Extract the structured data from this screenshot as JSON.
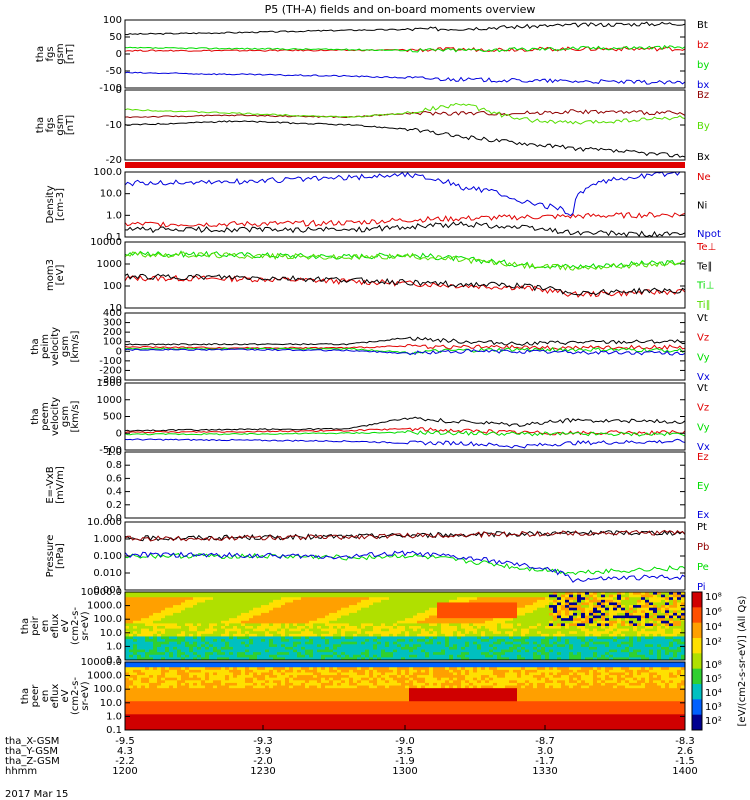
{
  "title": "P5 (TH-A) fields and on-board moments overview",
  "date_label": "2017 Mar 15",
  "colors": {
    "black": "#000000",
    "red": "#e00000",
    "green": "#00dd00",
    "blue": "#0000dd",
    "darkred": "#900000",
    "lime": "#55dd00"
  },
  "chart_data": [
    {
      "type": "line",
      "id": "fgs_gsm",
      "ylabel": [
        "tha",
        "fgs",
        "gsm",
        "[nT]"
      ],
      "ylim": [
        -100,
        100
      ],
      "yticks": [
        "100",
        "50",
        "0",
        "-50",
        "-100"
      ],
      "legend": [
        {
          "name": "Bt",
          "color": "black"
        },
        {
          "name": "bz",
          "color": "red"
        },
        {
          "name": "by",
          "color": "green"
        },
        {
          "name": "bx",
          "color": "blue"
        }
      ],
      "x": [
        0,
        0.2,
        0.4,
        0.5,
        0.6,
        0.7,
        0.8,
        1.0
      ],
      "series": [
        {
          "name": "Bt",
          "values": [
            58,
            63,
            70,
            72,
            75,
            80,
            85,
            90
          ]
        },
        {
          "name": "bz",
          "values": [
            10,
            10,
            11,
            12,
            13,
            14,
            15,
            15
          ]
        },
        {
          "name": "by",
          "values": [
            18,
            16,
            13,
            11,
            12,
            13,
            17,
            20
          ]
        },
        {
          "name": "bx",
          "values": [
            -55,
            -60,
            -65,
            -70,
            -75,
            -78,
            -80,
            -85
          ]
        }
      ]
    },
    {
      "type": "line",
      "id": "fgs_gse",
      "ylabel": [
        "tha",
        "fgs",
        "gsm",
        "[nT]"
      ],
      "ylim": [
        -24,
        12
      ],
      "yticks": [
        "0",
        "-10",
        "-20"
      ],
      "legend": [
        {
          "name": "Bz",
          "color": "darkred"
        },
        {
          "name": "By",
          "color": "lime"
        },
        {
          "name": "Bx",
          "color": "black"
        }
      ],
      "x": [
        0,
        0.2,
        0.4,
        0.5,
        0.6,
        0.7,
        0.8,
        1.0
      ],
      "series": [
        {
          "name": "Bz",
          "values": [
            -2,
            -1,
            -2,
            0,
            0,
            0,
            1,
            0
          ]
        },
        {
          "name": "By",
          "values": [
            2,
            0,
            -2,
            0,
            5,
            -3,
            -5,
            -2
          ]
        },
        {
          "name": "Bx",
          "values": [
            -6,
            -4,
            -6,
            -8,
            -12,
            -15,
            -18,
            -22
          ]
        }
      ]
    },
    {
      "type": "line",
      "id": "density",
      "ylabel": [
        "Density",
        "[cm-3]"
      ],
      "log": true,
      "ylim": [
        0.06,
        200
      ],
      "yticks": [
        "100.0",
        "10.0",
        "1.0",
        "0.1"
      ],
      "legend": [
        {
          "name": "Ne",
          "color": "red"
        },
        {
          "name": "Ni",
          "color": "black"
        },
        {
          "name": "Npot",
          "color": "blue"
        }
      ],
      "x": [
        0,
        0.2,
        0.4,
        0.5,
        0.6,
        0.7,
        0.8,
        1.0
      ],
      "series": [
        {
          "name": "Ne",
          "values": [
            0.3,
            0.3,
            0.35,
            0.5,
            0.6,
            0.7,
            0.8,
            1.0
          ]
        },
        {
          "name": "Ni",
          "values": [
            0.15,
            0.15,
            0.15,
            0.2,
            0.3,
            0.2,
            0.1,
            0.08
          ]
        },
        {
          "name": "Npot",
          "values": [
            50,
            60,
            100,
            150,
            30,
            5,
            1,
            200
          ]
        }
      ]
    },
    {
      "type": "line",
      "id": "temperature",
      "ylabel": [
        "mom3",
        "[eV]"
      ],
      "log": true,
      "ylim": [
        4,
        12000
      ],
      "yticks": [
        "10000",
        "1000",
        "100",
        "10"
      ],
      "legend": [
        {
          "name": "Te⊥",
          "color": "red"
        },
        {
          "name": "Te∥",
          "color": "black"
        },
        {
          "name": "Ti⊥",
          "color": "green"
        },
        {
          "name": "Ti∥",
          "color": "lime"
        }
      ],
      "x": [
        0,
        0.2,
        0.4,
        0.5,
        0.6,
        0.7,
        0.8,
        1.0
      ],
      "series": [
        {
          "name": "Te⊥",
          "values": [
            150,
            140,
            100,
            80,
            60,
            50,
            20,
            30
          ]
        },
        {
          "name": "Te∥",
          "values": [
            180,
            160,
            120,
            90,
            70,
            60,
            25,
            35
          ]
        },
        {
          "name": "Ti⊥",
          "values": [
            3000,
            2500,
            2000,
            2500,
            1500,
            800,
            600,
            1000
          ]
        },
        {
          "name": "Ti∥",
          "values": [
            2800,
            2300,
            1800,
            2200,
            1400,
            700,
            500,
            900
          ]
        }
      ]
    },
    {
      "type": "line",
      "id": "peim_velocity",
      "ylabel": [
        "tha",
        "peim",
        "velocity",
        "gsm",
        "[km/s]"
      ],
      "ylim": [
        -350,
        400
      ],
      "yticks": [
        "400",
        "300",
        "200",
        "100",
        "0",
        "-100",
        "-200",
        "-300"
      ],
      "legend": [
        {
          "name": "Vt",
          "color": "black"
        },
        {
          "name": "Vz",
          "color": "red"
        },
        {
          "name": "Vy",
          "color": "green"
        },
        {
          "name": "Vx",
          "color": "blue"
        }
      ],
      "x": [
        0,
        0.2,
        0.4,
        0.5,
        0.6,
        0.7,
        0.8,
        1.0
      ],
      "series": [
        {
          "name": "Vt",
          "values": [
            50,
            50,
            50,
            120,
            80,
            60,
            70,
            80
          ]
        },
        {
          "name": "Vz",
          "values": [
            20,
            10,
            10,
            30,
            20,
            15,
            10,
            20
          ]
        },
        {
          "name": "Vy",
          "values": [
            0,
            0,
            0,
            -40,
            -20,
            -10,
            -10,
            -20
          ]
        },
        {
          "name": "Vx",
          "values": [
            -10,
            -10,
            -20,
            -50,
            -30,
            -30,
            -40,
            -50
          ]
        }
      ]
    },
    {
      "type": "line",
      "id": "peem_velocity",
      "ylabel": [
        "tha",
        "peem",
        "velocity",
        "gsm",
        "[km/s]"
      ],
      "ylim": [
        -400,
        1500
      ],
      "yticks": [
        "1500",
        "1000",
        "500",
        "0",
        "-500"
      ],
      "legend": [
        {
          "name": "Vt",
          "color": "black"
        },
        {
          "name": "Vz",
          "color": "red"
        },
        {
          "name": "Vy",
          "color": "green"
        },
        {
          "name": "Vx",
          "color": "blue"
        }
      ],
      "x": [
        0,
        0.2,
        0.4,
        0.5,
        0.6,
        0.7,
        0.8,
        1.0
      ],
      "series": [
        {
          "name": "Vt",
          "values": [
            150,
            180,
            200,
            500,
            400,
            300,
            450,
            400
          ]
        },
        {
          "name": "Vz",
          "values": [
            100,
            120,
            150,
            200,
            150,
            100,
            80,
            100
          ]
        },
        {
          "name": "Vy",
          "values": [
            50,
            50,
            80,
            100,
            80,
            60,
            50,
            50
          ]
        },
        {
          "name": "Vx",
          "values": [
            -100,
            -120,
            -150,
            -200,
            -200,
            -300,
            -200,
            -150
          ]
        }
      ]
    },
    {
      "type": "line",
      "id": "exb",
      "ylabel": [
        "E=-VxB",
        "[mV/m]"
      ],
      "ylim": [
        0,
        1
      ],
      "yticks": [
        "1.0",
        "0.8",
        "0.6",
        "0.4",
        "0.2",
        "0.0"
      ],
      "legend": [
        {
          "name": "Ez",
          "color": "red"
        },
        {
          "name": "Ey",
          "color": "green"
        },
        {
          "name": "Ex",
          "color": "blue"
        }
      ],
      "x": [],
      "series": []
    },
    {
      "type": "line",
      "id": "pressure",
      "ylabel": [
        "Pressure",
        "[nPa]"
      ],
      "log": true,
      "ylim": [
        0.001,
        10
      ],
      "yticks": [
        "10.000",
        "1.000",
        "0.100",
        "0.010",
        "0.001"
      ],
      "legend": [
        {
          "name": "Pt",
          "color": "black"
        },
        {
          "name": "Pb",
          "color": "darkred"
        },
        {
          "name": "Pe",
          "color": "green"
        },
        {
          "name": "Pi",
          "color": "blue"
        }
      ],
      "x": [
        0,
        0.2,
        0.4,
        0.5,
        0.6,
        0.7,
        0.8,
        1.0
      ],
      "series": [
        {
          "name": "Pt",
          "values": [
            1.1,
            1.2,
            1.4,
            1.6,
            1.8,
            2.0,
            2.2,
            2.4
          ]
        },
        {
          "name": "Pb",
          "values": [
            1.05,
            1.15,
            1.35,
            1.55,
            1.75,
            1.95,
            2.15,
            2.35
          ]
        },
        {
          "name": "Pe",
          "values": [
            0.1,
            0.1,
            0.08,
            0.1,
            0.05,
            0.02,
            0.01,
            0.02
          ]
        },
        {
          "name": "Pi",
          "values": [
            0.12,
            0.11,
            0.09,
            0.15,
            0.08,
            0.03,
            0.004,
            0.006
          ]
        }
      ]
    },
    {
      "type": "heatmap",
      "id": "peir_en",
      "ylabel": [
        "tha",
        "peir",
        "en",
        "eflux",
        "eV",
        "(cm2-s-",
        "sr-eV)"
      ],
      "log": true,
      "yticks": [
        "10000.0",
        "1000.0",
        "100.0",
        "10.0",
        "1.0",
        "0.1"
      ]
    },
    {
      "type": "heatmap",
      "id": "peer_en",
      "ylabel": [
        "tha",
        "peer",
        "en",
        "eflux",
        "eV",
        "(cm2-s-",
        "sr-eV)"
      ],
      "log": true,
      "yticks": [
        "10000.0",
        "1000.0",
        "100.0",
        "10.0",
        "1.0",
        "0.1"
      ]
    }
  ],
  "colorbar": {
    "label": "[eV/(cm2-s-sr-eV)] (All Qs)",
    "ticks_top": [
      "10⁸",
      "10⁶",
      "10⁴",
      "10²"
    ],
    "ticks_bottom": [
      "10⁸",
      "10⁵",
      "10⁴",
      "10³",
      "10²"
    ]
  },
  "x_axis": {
    "rows": [
      {
        "label": "tha_X-GSM",
        "values": [
          "-9.5",
          "-9.3",
          "-9.0",
          "-8.7",
          "-8.3"
        ]
      },
      {
        "label": "tha_Y-GSM",
        "values": [
          "4.3",
          "3.9",
          "3.5",
          "3.0",
          "2.6"
        ]
      },
      {
        "label": "tha_Z-GSM",
        "values": [
          "-2.2",
          "-2.0",
          "-1.9",
          "-1.7",
          "-1.5"
        ]
      },
      {
        "label": "hhmm",
        "values": [
          "1200",
          "1230",
          "1300",
          "1330",
          "1400"
        ]
      }
    ]
  }
}
